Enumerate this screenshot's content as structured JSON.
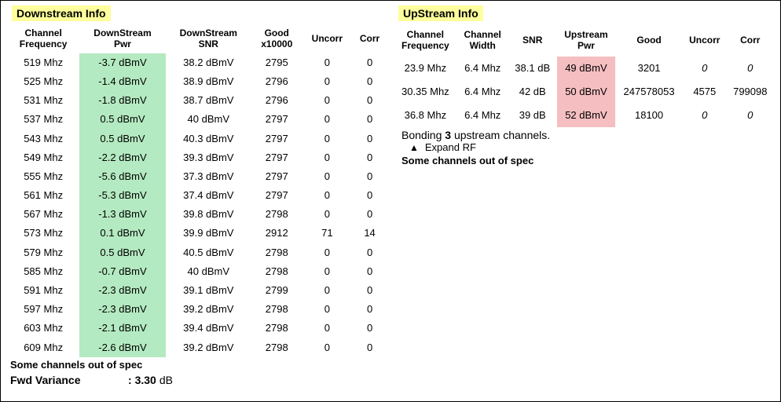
{
  "colors": {
    "title_highlight_bg": "#fefe9c",
    "green_highlight_bg": "#b4eac1",
    "red_highlight_bg": "#f5bec1",
    "border_color": "#000000",
    "text_color": "#000000",
    "background_color": "#ffffff"
  },
  "downstream": {
    "title": "Downstream Info",
    "columns": [
      "Channel Frequency",
      "DownStream Pwr",
      "DownStream SNR",
      "Good x10000",
      "Uncorr",
      "Corr"
    ],
    "rows": [
      {
        "freq": "519 Mhz",
        "pwr": "-3.7 dBmV",
        "snr": "38.2 dBmV",
        "good": "2795",
        "uncorr": "0",
        "corr": "0"
      },
      {
        "freq": "525 Mhz",
        "pwr": "-1.4 dBmV",
        "snr": "38.9 dBmV",
        "good": "2796",
        "uncorr": "0",
        "corr": "0"
      },
      {
        "freq": "531 Mhz",
        "pwr": "-1.8 dBmV",
        "snr": "38.7 dBmV",
        "good": "2796",
        "uncorr": "0",
        "corr": "0"
      },
      {
        "freq": "537 Mhz",
        "pwr": "0.5 dBmV",
        "snr": "40 dBmV",
        "good": "2797",
        "uncorr": "0",
        "corr": "0"
      },
      {
        "freq": "543 Mhz",
        "pwr": "0.5 dBmV",
        "snr": "40.3 dBmV",
        "good": "2797",
        "uncorr": "0",
        "corr": "0"
      },
      {
        "freq": "549 Mhz",
        "pwr": "-2.2 dBmV",
        "snr": "39.3 dBmV",
        "good": "2797",
        "uncorr": "0",
        "corr": "0"
      },
      {
        "freq": "555 Mhz",
        "pwr": "-5.6 dBmV",
        "snr": "37.3 dBmV",
        "good": "2797",
        "uncorr": "0",
        "corr": "0"
      },
      {
        "freq": "561 Mhz",
        "pwr": "-5.3 dBmV",
        "snr": "37.4 dBmV",
        "good": "2797",
        "uncorr": "0",
        "corr": "0"
      },
      {
        "freq": "567 Mhz",
        "pwr": "-1.3 dBmV",
        "snr": "39.8 dBmV",
        "good": "2798",
        "uncorr": "0",
        "corr": "0"
      },
      {
        "freq": "573 Mhz",
        "pwr": "0.1 dBmV",
        "snr": "39.9 dBmV",
        "good": "2912",
        "uncorr": "71",
        "corr": "14"
      },
      {
        "freq": "579 Mhz",
        "pwr": "0.5 dBmV",
        "snr": "40.5 dBmV",
        "good": "2798",
        "uncorr": "0",
        "corr": "0"
      },
      {
        "freq": "585 Mhz",
        "pwr": "-0.7 dBmV",
        "snr": "40 dBmV",
        "good": "2798",
        "uncorr": "0",
        "corr": "0"
      },
      {
        "freq": "591 Mhz",
        "pwr": "-2.3 dBmV",
        "snr": "39.1 dBmV",
        "good": "2799",
        "uncorr": "0",
        "corr": "0"
      },
      {
        "freq": "597 Mhz",
        "pwr": "-2.3 dBmV",
        "snr": "39.2 dBmV",
        "good": "2798",
        "uncorr": "0",
        "corr": "0"
      },
      {
        "freq": "603 Mhz",
        "pwr": "-2.1 dBmV",
        "snr": "39.4 dBmV",
        "good": "2798",
        "uncorr": "0",
        "corr": "0"
      },
      {
        "freq": "609 Mhz",
        "pwr": "-2.6 dBmV",
        "snr": "39.2 dBmV",
        "good": "2798",
        "uncorr": "0",
        "corr": "0"
      }
    ],
    "spec_note": "Some channels out of spec",
    "fwd_label": "Fwd Variance",
    "fwd_separator": ":",
    "fwd_value": "3.30",
    "fwd_unit": "dB"
  },
  "upstream": {
    "title": "UpStream Info",
    "columns": [
      "Channel Frequency",
      "Channel Width",
      "SNR",
      "Upstream Pwr",
      "Good",
      "Uncorr",
      "Corr"
    ],
    "rows": [
      {
        "freq": "23.9 Mhz",
        "width": "6.4 Mhz",
        "snr": "38.1 dB",
        "pwr": "49 dBmV",
        "good": "3201",
        "uncorr": "0",
        "corr": "0",
        "italic": true
      },
      {
        "freq": "30.35 Mhz",
        "width": "6.4 Mhz",
        "snr": "42 dB",
        "pwr": "50 dBmV",
        "good": "247578053",
        "uncorr": "4575",
        "corr": "799098",
        "italic": false
      },
      {
        "freq": "36.8 Mhz",
        "width": "6.4 Mhz",
        "snr": "39 dB",
        "pwr": "52 dBmV",
        "good": "18100",
        "uncorr": "0",
        "corr": "0",
        "italic": true
      }
    ],
    "bonding_prefix": "Bonding ",
    "bonding_count": "3",
    "bonding_suffix": " upstream channels.",
    "expand_label": "Expand RF",
    "spec_note": "Some channels out of spec"
  }
}
